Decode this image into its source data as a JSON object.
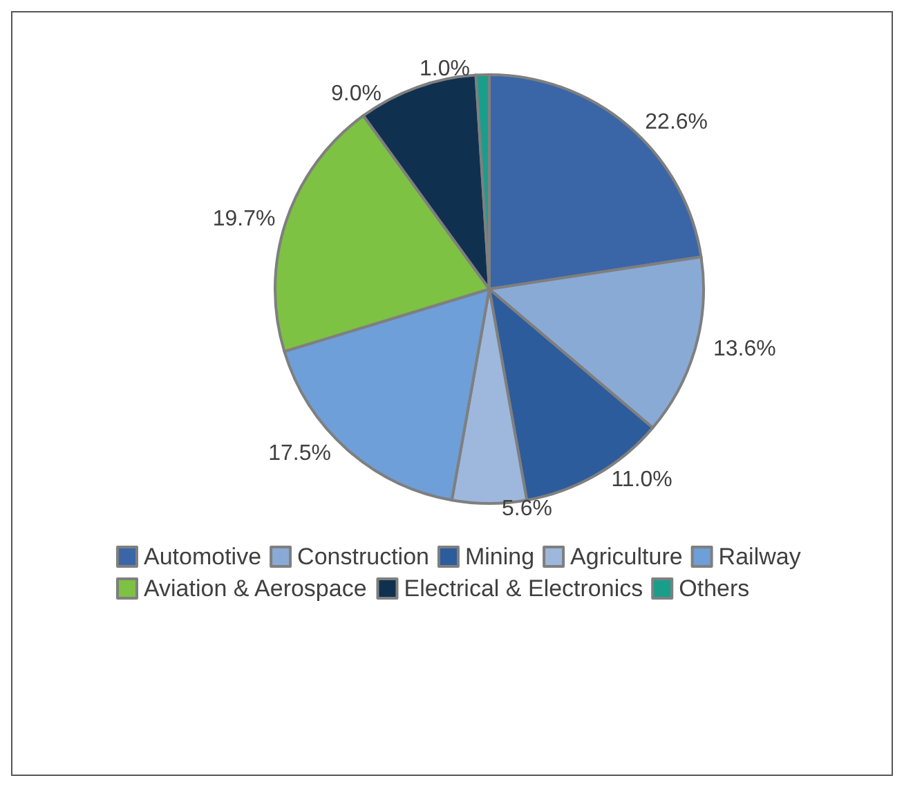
{
  "chart_data": {
    "type": "pie",
    "categories": [
      "Automotive",
      "Construction",
      "Mining",
      "Agriculture",
      "Railway",
      "Aviation & Aerospace",
      "Electrical & Electronics",
      "Others"
    ],
    "values": [
      22.6,
      13.6,
      11.0,
      5.6,
      17.5,
      19.7,
      9.0,
      1.0
    ],
    "value_labels": [
      "22.6%",
      "13.6%",
      "11.0%",
      "5.6%",
      "17.5%",
      "19.7%",
      "9.0%",
      "1.0%"
    ],
    "colors": [
      "#3a66a8",
      "#8aaad6",
      "#2c5c9c",
      "#9db8dc",
      "#6e9fd8",
      "#7dc242",
      "#10304f",
      "#1a9e8c"
    ],
    "legend": "bottom"
  }
}
